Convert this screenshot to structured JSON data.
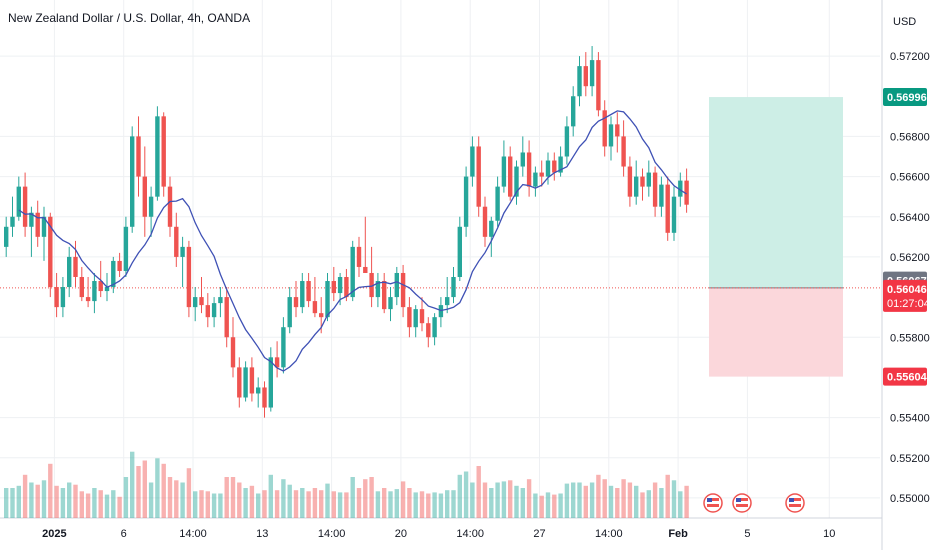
{
  "header": {
    "title": "New Zealand Dollar / U.S. Dollar, 4h, OANDA"
  },
  "price_axis": {
    "currency": "USD"
  },
  "colors": {
    "up": "#26a69a",
    "down": "#ef5350",
    "ma_line": "#3f51b5",
    "target_zone": "#cdeee6",
    "stop_zone": "#fbd7db",
    "target_badge": "#089981",
    "stop_badge": "#f23645",
    "last_price_badge": "#f23645",
    "prev_close_badge": "#6f7582"
  },
  "chart_data": {
    "type": "candlestick",
    "title": "New Zealand Dollar / U.S. Dollar, 4h, OANDA",
    "ylim": [
      0.549,
      0.573
    ],
    "y_ticks": [
      "0.57200",
      "0.56800",
      "0.56600",
      "0.56400",
      "0.56200",
      "0.55800",
      "0.55400",
      "0.55200",
      "0.55000"
    ],
    "x_ticks": [
      {
        "label": "2025",
        "bar": 8
      },
      {
        "label": "6",
        "bar": 19
      },
      {
        "label": "14:00",
        "bar": 30
      },
      {
        "label": "13",
        "bar": 41
      },
      {
        "label": "14:00",
        "bar": 52
      },
      {
        "label": "20",
        "bar": 63
      },
      {
        "label": "14:00",
        "bar": 74
      },
      {
        "label": "27",
        "bar": 85
      },
      {
        "label": "14:00",
        "bar": 96
      },
      {
        "label": "Feb",
        "bar": 107
      },
      {
        "label": "5",
        "bar": 118
      },
      {
        "label": "10",
        "bar": 131
      }
    ],
    "bar_count_span": 150,
    "candles": [
      [
        0.5625,
        0.564,
        0.562,
        0.5635
      ],
      [
        0.5635,
        0.565,
        0.563,
        0.564
      ],
      [
        0.564,
        0.566,
        0.5638,
        0.5655
      ],
      [
        0.5655,
        0.5662,
        0.563,
        0.5635
      ],
      [
        0.5635,
        0.5645,
        0.562,
        0.5642
      ],
      [
        0.5642,
        0.5648,
        0.5625,
        0.563
      ],
      [
        0.563,
        0.5645,
        0.5618,
        0.564
      ],
      [
        0.564,
        0.5642,
        0.56,
        0.5605
      ],
      [
        0.5605,
        0.5612,
        0.559,
        0.5595
      ],
      [
        0.5595,
        0.561,
        0.559,
        0.5605
      ],
      [
        0.5605,
        0.5625,
        0.56,
        0.562
      ],
      [
        0.562,
        0.5628,
        0.5605,
        0.561
      ],
      [
        0.561,
        0.5615,
        0.5598,
        0.56
      ],
      [
        0.56,
        0.561,
        0.5595,
        0.5598
      ],
      [
        0.5598,
        0.5612,
        0.5592,
        0.5608
      ],
      [
        0.5608,
        0.5618,
        0.56,
        0.5603
      ],
      [
        0.5603,
        0.5612,
        0.5598,
        0.5605
      ],
      [
        0.5605,
        0.562,
        0.5602,
        0.5618
      ],
      [
        0.5618,
        0.5622,
        0.561,
        0.5613
      ],
      [
        0.5613,
        0.564,
        0.561,
        0.5635
      ],
      [
        0.5635,
        0.5685,
        0.5632,
        0.568
      ],
      [
        0.568,
        0.569,
        0.565,
        0.566
      ],
      [
        0.566,
        0.5675,
        0.563,
        0.564
      ],
      [
        0.564,
        0.5655,
        0.563,
        0.565
      ],
      [
        0.565,
        0.5695,
        0.5648,
        0.569
      ],
      [
        0.569,
        0.5692,
        0.565,
        0.5655
      ],
      [
        0.5655,
        0.566,
        0.563,
        0.5635
      ],
      [
        0.5635,
        0.5642,
        0.5615,
        0.562
      ],
      [
        0.562,
        0.563,
        0.5605,
        0.5625
      ],
      [
        0.5625,
        0.5628,
        0.559,
        0.5595
      ],
      [
        0.5595,
        0.5605,
        0.5588,
        0.56
      ],
      [
        0.56,
        0.561,
        0.5592,
        0.5596
      ],
      [
        0.5596,
        0.5602,
        0.5585,
        0.559
      ],
      [
        0.559,
        0.56,
        0.5585,
        0.5597
      ],
      [
        0.5597,
        0.5605,
        0.559,
        0.56
      ],
      [
        0.56,
        0.5605,
        0.5575,
        0.558
      ],
      [
        0.558,
        0.559,
        0.556,
        0.5565
      ],
      [
        0.5565,
        0.557,
        0.5545,
        0.555
      ],
      [
        0.555,
        0.5568,
        0.5548,
        0.5565
      ],
      [
        0.5565,
        0.557,
        0.5548,
        0.5552
      ],
      [
        0.5552,
        0.556,
        0.5545,
        0.5555
      ],
      [
        0.5555,
        0.5558,
        0.554,
        0.5545
      ],
      [
        0.5545,
        0.5575,
        0.5543,
        0.557
      ],
      [
        0.557,
        0.5578,
        0.556,
        0.5565
      ],
      [
        0.5565,
        0.559,
        0.5562,
        0.5585
      ],
      [
        0.5585,
        0.5605,
        0.5582,
        0.56
      ],
      [
        0.56,
        0.5608,
        0.559,
        0.5595
      ],
      [
        0.5595,
        0.5612,
        0.5592,
        0.5608
      ],
      [
        0.5608,
        0.5612,
        0.5595,
        0.5598
      ],
      [
        0.5598,
        0.561,
        0.559,
        0.5592
      ],
      [
        0.5592,
        0.56,
        0.5582,
        0.559
      ],
      [
        0.559,
        0.5612,
        0.5588,
        0.5608
      ],
      [
        0.5608,
        0.5615,
        0.5598,
        0.5602
      ],
      [
        0.5602,
        0.5612,
        0.5596,
        0.561
      ],
      [
        0.561,
        0.5614,
        0.5598,
        0.56
      ],
      [
        0.56,
        0.5628,
        0.5598,
        0.5625
      ],
      [
        0.5625,
        0.563,
        0.561,
        0.5615
      ],
      [
        0.5615,
        0.564,
        0.5612,
        0.5612
      ],
      [
        0.5612,
        0.5625,
        0.5595,
        0.56
      ],
      [
        0.56,
        0.5612,
        0.5595,
        0.5608
      ],
      [
        0.5608,
        0.5612,
        0.5592,
        0.5594
      ],
      [
        0.5594,
        0.5605,
        0.5588,
        0.56
      ],
      [
        0.56,
        0.5615,
        0.5596,
        0.5612
      ],
      [
        0.5612,
        0.5616,
        0.559,
        0.5595
      ],
      [
        0.5595,
        0.56,
        0.558,
        0.5585
      ],
      [
        0.5585,
        0.5596,
        0.558,
        0.5594
      ],
      [
        0.5594,
        0.56,
        0.5583,
        0.5587
      ],
      [
        0.5587,
        0.559,
        0.5575,
        0.558
      ],
      [
        0.558,
        0.5592,
        0.5576,
        0.559
      ],
      [
        0.559,
        0.56,
        0.5585,
        0.5596
      ],
      [
        0.5596,
        0.561,
        0.5592,
        0.56
      ],
      [
        0.56,
        0.5615,
        0.5597,
        0.561
      ],
      [
        0.561,
        0.564,
        0.5608,
        0.5635
      ],
      [
        0.5635,
        0.5665,
        0.563,
        0.566
      ],
      [
        0.566,
        0.568,
        0.5655,
        0.5675
      ],
      [
        0.5675,
        0.568,
        0.564,
        0.5645
      ],
      [
        0.5645,
        0.565,
        0.5625,
        0.563
      ],
      [
        0.563,
        0.564,
        0.562,
        0.5638
      ],
      [
        0.5638,
        0.566,
        0.5635,
        0.5655
      ],
      [
        0.5655,
        0.5678,
        0.5652,
        0.567
      ],
      [
        0.567,
        0.5675,
        0.5648,
        0.565
      ],
      [
        0.565,
        0.5668,
        0.5646,
        0.5665
      ],
      [
        0.5665,
        0.568,
        0.566,
        0.5672
      ],
      [
        0.5672,
        0.5678,
        0.565,
        0.5655
      ],
      [
        0.5655,
        0.5665,
        0.565,
        0.5662
      ],
      [
        0.5662,
        0.5668,
        0.5655,
        0.566
      ],
      [
        0.566,
        0.5672,
        0.5656,
        0.5668
      ],
      [
        0.5668,
        0.5672,
        0.5658,
        0.5662
      ],
      [
        0.5662,
        0.5675,
        0.566,
        0.567
      ],
      [
        0.567,
        0.569,
        0.5666,
        0.5685
      ],
      [
        0.5685,
        0.5705,
        0.568,
        0.57
      ],
      [
        0.57,
        0.572,
        0.5695,
        0.5715
      ],
      [
        0.5715,
        0.5722,
        0.57,
        0.5705
      ],
      [
        0.5705,
        0.5725,
        0.57,
        0.5718
      ],
      [
        0.5718,
        0.5722,
        0.569,
        0.5693
      ],
      [
        0.5693,
        0.5698,
        0.567,
        0.5675
      ],
      [
        0.5675,
        0.569,
        0.5668,
        0.5686
      ],
      [
        0.5686,
        0.5692,
        0.5672,
        0.568
      ],
      [
        0.568,
        0.5688,
        0.566,
        0.5665
      ],
      [
        0.5665,
        0.567,
        0.5645,
        0.565
      ],
      [
        0.565,
        0.5668,
        0.5646,
        0.566
      ],
      [
        0.566,
        0.5664,
        0.5648,
        0.5655
      ],
      [
        0.5655,
        0.5668,
        0.565,
        0.5662
      ],
      [
        0.5662,
        0.5665,
        0.564,
        0.5645
      ],
      [
        0.5645,
        0.566,
        0.564,
        0.5656
      ],
      [
        0.5656,
        0.566,
        0.5628,
        0.5632
      ],
      [
        0.5632,
        0.5655,
        0.5628,
        0.565
      ],
      [
        0.565,
        0.5662,
        0.5645,
        0.5658
      ],
      [
        0.5658,
        0.5664,
        0.5642,
        0.5646
      ]
    ],
    "ma_values_note": "moving average computed in script from candles",
    "target_price": 0.56996,
    "entry_price": 0.56046,
    "stop_price": 0.55604,
    "prev_close_price": 0.56067,
    "price_labels": {
      "target": "0.56996",
      "prev_close": "0.56067",
      "last": "0.56046",
      "countdown": "01:27:04",
      "stop": "0.55604"
    }
  }
}
